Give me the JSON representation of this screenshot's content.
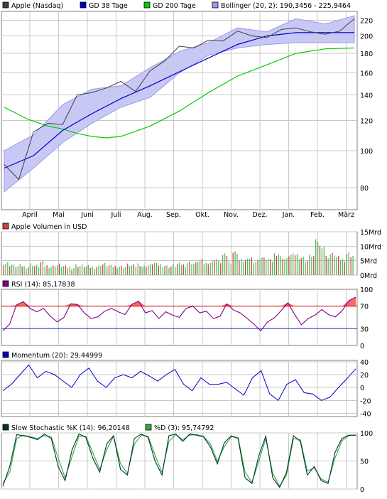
{
  "chart_data": [
    {
      "type": "line",
      "panel": "price",
      "legend": [
        {
          "label": "Apple (Nasdaq)",
          "color": "#404040"
        },
        {
          "label": "GD 38 Tage",
          "color": "#0000cc"
        },
        {
          "label": "GD 200 Tage",
          "color": "#00cc00"
        },
        {
          "label": "Bollinger (20, 2): 190,3456 - 225,9464",
          "color": "#9999ee"
        }
      ],
      "x_ticks": [
        "April",
        "Mai",
        "Juni",
        "Juli",
        "Aug.",
        "Sep.",
        "Okt.",
        "Nov.",
        "Dez.",
        "Jan.",
        "Feb.",
        "März"
      ],
      "y_ticks": [
        80,
        100,
        120,
        140,
        160,
        180,
        200,
        220
      ],
      "y_scale": "log",
      "ylim": [
        70,
        232
      ],
      "series": [
        {
          "name": "Apple (Nasdaq)",
          "color": "#404040",
          "x": [
            0,
            0.5,
            1,
            1.5,
            2,
            2.5,
            3,
            3.5,
            4,
            4.5,
            5,
            5.5,
            6,
            6.5,
            7,
            7.5,
            8,
            8.5,
            9,
            9.5,
            10,
            10.5,
            11,
            11.5,
            12
          ],
          "values": [
            92,
            84,
            112,
            118,
            117,
            140,
            142,
            146,
            152,
            143,
            162,
            172,
            188,
            186,
            195,
            194,
            206,
            200,
            198,
            208,
            210,
            205,
            202,
            206,
            222
          ]
        },
        {
          "name": "GD 38 Tage",
          "color": "#0000cc",
          "x": [
            0,
            1,
            2,
            3,
            4,
            5,
            6,
            7,
            8,
            9,
            10,
            11,
            12
          ],
          "values": [
            90,
            97,
            113,
            125,
            137,
            148,
            161,
            175,
            190,
            200,
            204,
            204,
            204
          ]
        },
        {
          "name": "GD 200 Tage",
          "color": "#00cc00",
          "x": [
            0,
            0.8,
            1.5,
            2,
            2.5,
            3,
            3.5,
            4,
            5,
            6,
            7,
            8,
            9,
            10,
            11,
            12
          ],
          "values": [
            130,
            121,
            116,
            114,
            111,
            109,
            108,
            109,
            116,
            127,
            142,
            157,
            168,
            180,
            185,
            186
          ]
        },
        {
          "name": "Bollinger (20, 2)",
          "color": "#9999ee",
          "x": [
            0,
            1,
            2,
            3,
            4,
            5,
            6,
            7,
            8,
            9,
            10,
            11,
            12
          ],
          "upper": [
            100,
            110,
            132,
            145,
            148,
            165,
            182,
            192,
            210,
            205,
            222,
            215,
            226
          ],
          "lower": [
            78,
            90,
            105,
            118,
            130,
            138,
            160,
            178,
            186,
            190,
            192,
            192,
            192
          ]
        }
      ]
    },
    {
      "type": "bar",
      "panel": "volume",
      "legend": [
        {
          "label": "Apple Volumen in USD",
          "color": "#cc4444"
        }
      ],
      "y_ticks": [
        "15Mrd",
        "10Mrd",
        "5Mrd",
        "0Mrd"
      ],
      "ylim": [
        0,
        15
      ],
      "unit": "Mrd USD",
      "values": [
        4,
        3.5,
        3,
        3.2,
        2.8,
        3.6,
        3.0,
        4.2,
        3.1,
        2.9,
        3.4,
        3.0,
        2.6,
        2.5,
        3.3,
        3.0,
        2.8,
        2.7,
        2.9,
        3.6,
        3.2,
        2.9,
        3.0,
        2.8,
        3.4,
        3.1,
        3.7,
        2.9,
        3.3,
        4.0,
        3.5,
        3.2,
        2.9,
        3.1,
        3.6,
        3.4,
        4.2,
        3.8,
        4.9,
        3.9,
        4.3,
        5.5,
        4.4,
        6.8,
        4.5,
        7.8,
        5.1,
        5.0,
        5.8,
        4.7,
        6.0,
        5.5,
        4.8,
        7.2,
        6.1,
        5.3,
        6.8,
        7.0,
        5.9,
        4.9,
        6.5,
        11.7,
        9.8,
        6.2,
        7.1,
        6.0,
        5.2,
        7.4,
        6.6
      ]
    },
    {
      "type": "line",
      "panel": "rsi",
      "legend": [
        {
          "label": "RSI (14): 85,17838",
          "color": "#800080"
        }
      ],
      "y_ticks": [
        100,
        70,
        30,
        0
      ],
      "reference_lines": [
        70,
        30
      ],
      "ylim": [
        0,
        100
      ],
      "values": [
        26,
        38,
        72,
        78,
        66,
        60,
        66,
        52,
        42,
        50,
        74,
        73,
        58,
        48,
        51,
        61,
        66,
        60,
        55,
        73,
        79,
        58,
        62,
        48,
        60,
        54,
        50,
        66,
        70,
        58,
        61,
        48,
        52,
        74,
        63,
        58,
        48,
        38,
        26,
        42,
        49,
        62,
        76,
        55,
        37,
        48,
        54,
        64,
        55,
        51,
        62,
        80,
        86
      ]
    },
    {
      "type": "line",
      "panel": "momentum",
      "legend": [
        {
          "label": "Momentum (20): 29,44999",
          "color": "#0000cc"
        }
      ],
      "y_ticks": [
        40,
        20,
        0,
        -20,
        -40
      ],
      "ylim": [
        -45,
        42
      ],
      "values": [
        -5,
        5,
        20,
        35,
        15,
        25,
        20,
        10,
        0,
        20,
        30,
        10,
        0,
        15,
        20,
        15,
        25,
        18,
        10,
        20,
        28,
        5,
        -5,
        15,
        5,
        5,
        8,
        -2,
        -12,
        15,
        26,
        -10,
        -20,
        5,
        12,
        -8,
        -10,
        -20,
        -15,
        0,
        14,
        29
      ]
    },
    {
      "type": "line",
      "panel": "stochastic",
      "legend": [
        {
          "label": "Slow Stochastic %K (14): 96,20148",
          "color": "#003333"
        },
        {
          "label": "%D (3): 95,74792",
          "color": "#33aa33"
        }
      ],
      "y_ticks": [
        100,
        50,
        0
      ],
      "ylim": [
        0,
        100
      ],
      "series": [
        {
          "name": "Slow Stochastic %K (14)",
          "color": "#003333",
          "values": [
            5,
            40,
            97,
            95,
            92,
            88,
            98,
            90,
            40,
            15,
            70,
            98,
            92,
            55,
            30,
            80,
            95,
            35,
            25,
            90,
            98,
            92,
            50,
            25,
            95,
            98,
            85,
            98,
            96,
            93,
            75,
            45,
            82,
            95,
            90,
            20,
            10,
            60,
            94,
            20,
            3,
            30,
            95,
            85,
            25,
            40,
            15,
            10,
            65,
            90,
            96,
            96
          ]
        },
        {
          "name": "%D (3)",
          "color": "#33aa33",
          "values": [
            10,
            30,
            90,
            96,
            93,
            90,
            95,
            93,
            55,
            20,
            58,
            94,
            94,
            65,
            35,
            70,
            94,
            45,
            28,
            80,
            96,
            94,
            60,
            30,
            85,
            97,
            88,
            96,
            97,
            94,
            80,
            50,
            75,
            93,
            92,
            30,
            12,
            50,
            90,
            28,
            5,
            25,
            90,
            88,
            32,
            38,
            18,
            12,
            55,
            86,
            95,
            96
          ]
        }
      ]
    }
  ]
}
